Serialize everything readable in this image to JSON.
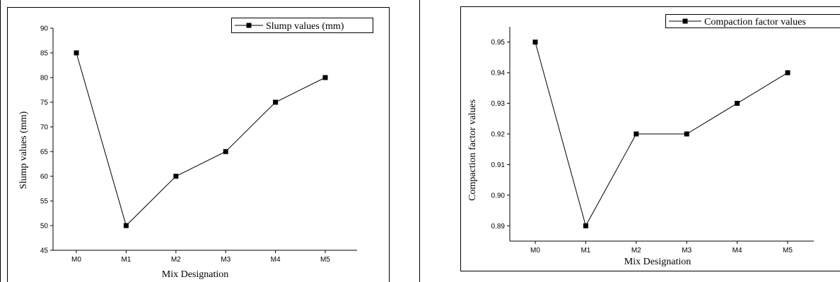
{
  "chart_data": [
    {
      "type": "line",
      "categories": [
        "M0",
        "M1",
        "M2",
        "M3",
        "M4",
        "M5"
      ],
      "series": [
        {
          "name": "Slump values (mm)",
          "values": [
            85,
            50,
            60,
            65,
            75,
            80
          ]
        }
      ],
      "title": "",
      "xlabel": "Mix Designation",
      "ylabel": "Slump values (mm)",
      "ylim": [
        45,
        90
      ],
      "yticks": [
        "45",
        "50",
        "55",
        "60",
        "65",
        "70",
        "75",
        "80",
        "85",
        "90"
      ],
      "legend": "top-right",
      "grid": false,
      "color": "#000000"
    },
    {
      "type": "line",
      "categories": [
        "M0",
        "M1",
        "M2",
        "M3",
        "M4",
        "M5"
      ],
      "series": [
        {
          "name": "Compaction factor values",
          "values": [
            0.95,
            0.89,
            0.92,
            0.92,
            0.93,
            0.94
          ]
        }
      ],
      "title": "",
      "xlabel": "Mix Designation",
      "ylabel": "Compaction factor values",
      "ylim": [
        0.885,
        0.955
      ],
      "yticks": [
        "0.89",
        "0.90",
        "0.91",
        "0.92",
        "0.93",
        "0.94",
        "0.95"
      ],
      "legend": "top-right",
      "grid": false,
      "color": "#000000"
    }
  ]
}
